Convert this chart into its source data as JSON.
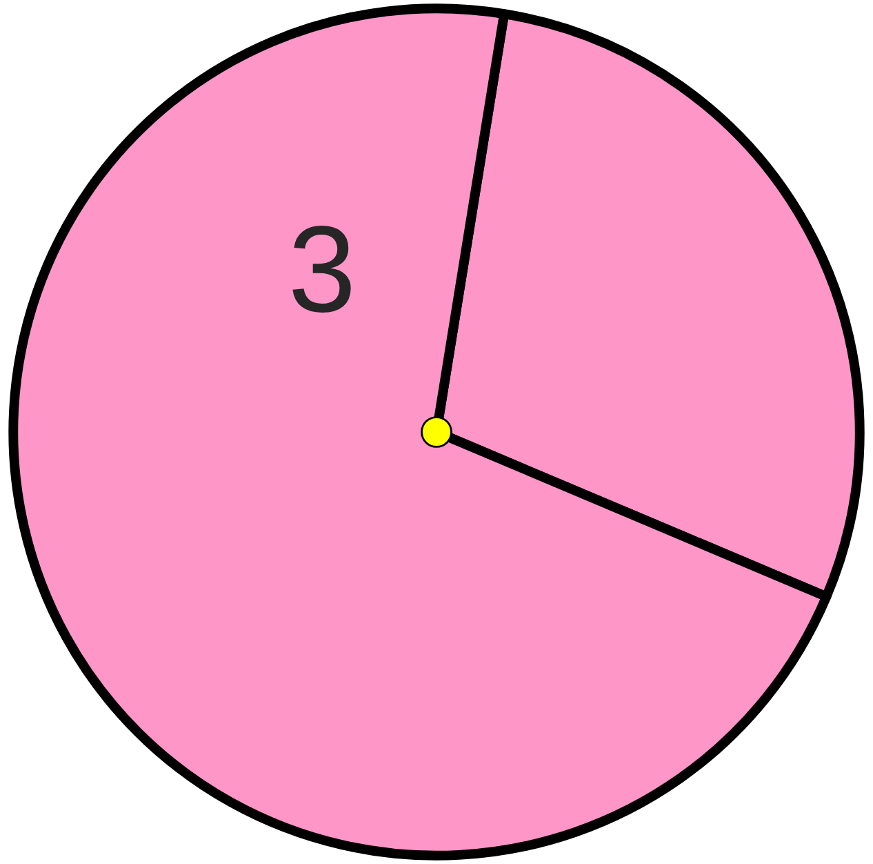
{
  "chart_data": {
    "type": "pie",
    "categories": [
      null,
      "3"
    ],
    "values": [
      28.8,
      71.2
    ],
    "colors": [
      "#fe96c8",
      "#fe96c8"
    ],
    "legend": false
  }
}
